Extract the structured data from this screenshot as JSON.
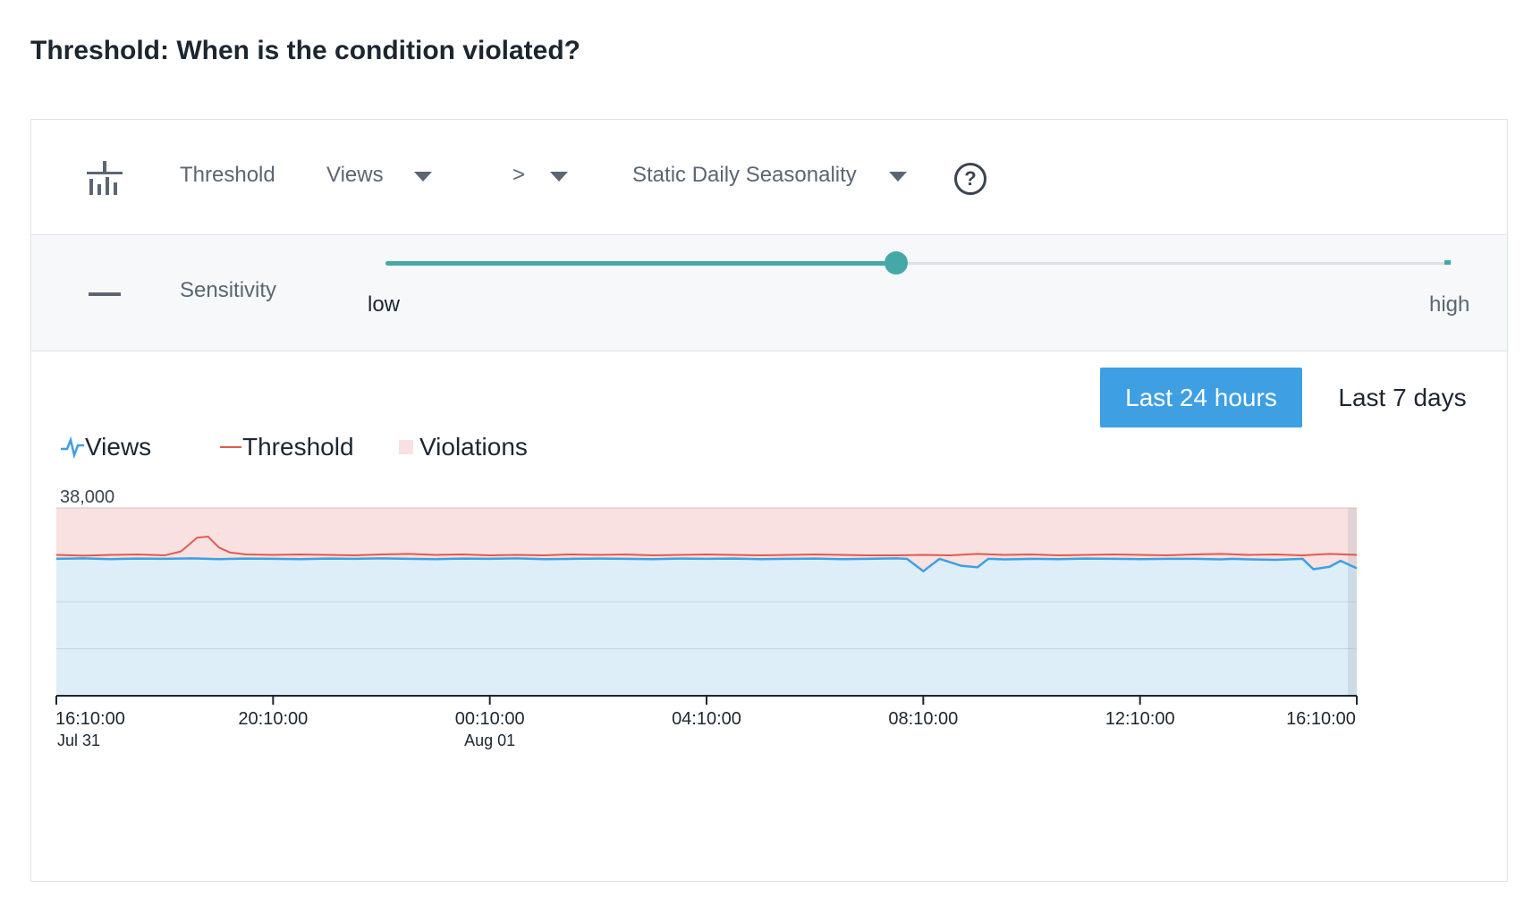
{
  "page_title": "Threshold: When is the condition violated?",
  "condition": {
    "type_label": "Threshold",
    "metric": "Views",
    "operator": ">",
    "mode": "Static Daily Seasonality",
    "help_symbol": "?"
  },
  "sensitivity": {
    "label": "Sensitivity",
    "low_label": "low",
    "high_label": "high",
    "value_fraction": 0.48
  },
  "time_range": {
    "options": [
      "Last 24 hours",
      "Last 7 days"
    ],
    "selected": "Last 24 hours"
  },
  "legend": {
    "views": "Views",
    "threshold": "Threshold",
    "violations": "Violations"
  },
  "icons": {
    "type_icon": "threshold-bars-icon",
    "collapse_icon": "minus-icon",
    "help_icon": "help-circle-icon",
    "views_legend_icon": "pulse-line-icon"
  },
  "colors": {
    "accent": "#3e9fe3",
    "slider": "#44a8a8",
    "views_line": "#3e9fe3",
    "views_fill": "#ddeef9",
    "threshold_line": "#e05a4e",
    "violation_fill": "#f9e1e1"
  },
  "chart_data": {
    "type": "line",
    "ymax_label": "38,000",
    "ylim": [
      0,
      38000
    ],
    "x_ticks": [
      {
        "time": "16:10:00",
        "date": "Jul 31"
      },
      {
        "time": "20:10:00",
        "date": ""
      },
      {
        "time": "00:10:00",
        "date": "Aug 01"
      },
      {
        "time": "04:10:00",
        "date": ""
      },
      {
        "time": "08:10:00",
        "date": ""
      },
      {
        "time": "12:10:00",
        "date": ""
      },
      {
        "time": "16:10:00",
        "date": ""
      }
    ],
    "x_hours": [
      0,
      24
    ],
    "series": [
      {
        "name": "Views",
        "x": [
          0,
          0.5,
          1,
          1.5,
          2,
          2.5,
          3,
          3.5,
          4,
          4.5,
          5,
          5.5,
          6,
          6.5,
          7,
          7.5,
          8,
          8.5,
          9,
          9.5,
          10,
          10.5,
          11,
          11.5,
          12,
          12.5,
          13,
          13.5,
          14,
          14.5,
          15,
          15.5,
          15.7,
          16,
          16.3,
          16.7,
          17,
          17.2,
          17.5,
          18,
          18.5,
          19,
          19.5,
          20,
          20.5,
          21,
          21.5,
          21.7,
          22,
          22.5,
          23,
          23.2,
          23.5,
          23.7,
          24
        ],
        "y": [
          27700,
          27800,
          27650,
          27750,
          27700,
          27800,
          27650,
          27750,
          27700,
          27650,
          27750,
          27700,
          27800,
          27700,
          27650,
          27750,
          27700,
          27800,
          27650,
          27700,
          27750,
          27700,
          27650,
          27750,
          27700,
          27750,
          27650,
          27700,
          27750,
          27650,
          27700,
          27800,
          27700,
          25200,
          27700,
          26300,
          26000,
          27700,
          27600,
          27700,
          27650,
          27750,
          27700,
          27650,
          27700,
          27700,
          27600,
          27700,
          27600,
          27500,
          27700,
          25600,
          26100,
          27300,
          25800
        ]
      },
      {
        "name": "Threshold",
        "x": [
          0,
          0.5,
          1,
          1.5,
          2,
          2.3,
          2.6,
          2.8,
          3,
          3.2,
          3.5,
          4,
          4.5,
          5,
          5.5,
          6,
          6.5,
          7,
          7.5,
          8,
          8.5,
          9,
          9.5,
          10,
          10.5,
          11,
          11.5,
          12,
          12.5,
          13,
          13.5,
          14,
          14.5,
          15,
          15.5,
          16,
          16.5,
          17,
          17.5,
          18,
          18.5,
          19,
          19.5,
          20,
          20.5,
          21,
          21.5,
          22,
          22.5,
          23,
          23.5,
          24
        ],
        "y": [
          28500,
          28350,
          28500,
          28600,
          28400,
          29200,
          32000,
          32200,
          30000,
          29000,
          28600,
          28500,
          28600,
          28500,
          28400,
          28600,
          28700,
          28500,
          28600,
          28400,
          28500,
          28400,
          28600,
          28500,
          28600,
          28400,
          28500,
          28600,
          28500,
          28400,
          28500,
          28600,
          28500,
          28400,
          28400,
          28500,
          28400,
          28700,
          28500,
          28600,
          28400,
          28500,
          28600,
          28500,
          28400,
          28600,
          28700,
          28500,
          28600,
          28400,
          28700,
          28500
        ]
      }
    ],
    "violations": [
      {
        "x_start": 0,
        "x_end": 24
      }
    ]
  }
}
